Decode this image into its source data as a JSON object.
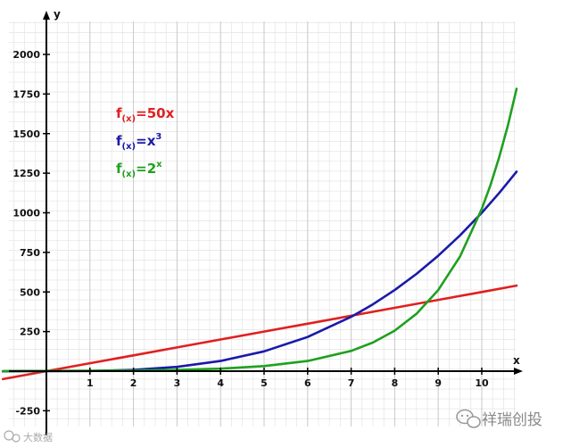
{
  "chart_data": {
    "type": "line",
    "title": "",
    "xlabel": "x",
    "ylabel": "y",
    "xlim": [
      -1,
      10.8
    ],
    "ylim": [
      -320,
      2250
    ],
    "grid": true,
    "x_ticks": [
      1,
      2,
      3,
      4,
      5,
      6,
      7,
      8,
      9,
      10
    ],
    "y_ticks": [
      -250,
      250,
      500,
      750,
      1000,
      1250,
      1500,
      1750,
      2000
    ],
    "legend_position": "top-left",
    "legend": [
      {
        "prefix": "f",
        "sub": "(x)",
        "body": "=50x",
        "sup": "",
        "color": "#e02020"
      },
      {
        "prefix": "f",
        "sub": "(x)",
        "body": "=x",
        "sup": "3",
        "color": "#1a1aa8"
      },
      {
        "prefix": "f",
        "sub": "(x)",
        "body": "=2",
        "sup": "x",
        "color": "#1fa01f"
      }
    ],
    "series": [
      {
        "color": "#e02020",
        "x": [
          -1,
          0,
          1,
          2,
          3,
          4,
          5,
          6,
          7,
          8,
          9,
          10,
          10.8
        ],
        "values": [
          -50,
          0,
          50,
          100,
          150,
          200,
          250,
          300,
          350,
          400,
          450,
          500,
          540
        ]
      },
      {
        "color": "#1a1aa8",
        "x": [
          -1,
          -0.5,
          0,
          1,
          2,
          3,
          4,
          5,
          6,
          7,
          7.5,
          8,
          8.5,
          9,
          9.5,
          10,
          10.4,
          10.8
        ],
        "values": [
          -1,
          -0.125,
          0,
          1,
          8,
          27,
          64,
          125,
          216,
          343,
          421.875,
          512,
          614.125,
          729,
          857.375,
          1000,
          1124.864,
          1259.712
        ]
      },
      {
        "color": "#1fa01f",
        "x": [
          -1,
          0,
          1,
          2,
          3,
          4,
          5,
          6,
          7,
          7.5,
          8,
          8.5,
          9,
          9.5,
          10,
          10.2,
          10.4,
          10.6,
          10.8
        ],
        "values": [
          0.5,
          1,
          2,
          4,
          8,
          16,
          32,
          64,
          128,
          181,
          256,
          362,
          512,
          724,
          1024,
          1176,
          1351,
          1552,
          1783
        ]
      }
    ]
  },
  "watermark": {
    "right_text": "祥瑞创投",
    "left_text": "大数据"
  }
}
